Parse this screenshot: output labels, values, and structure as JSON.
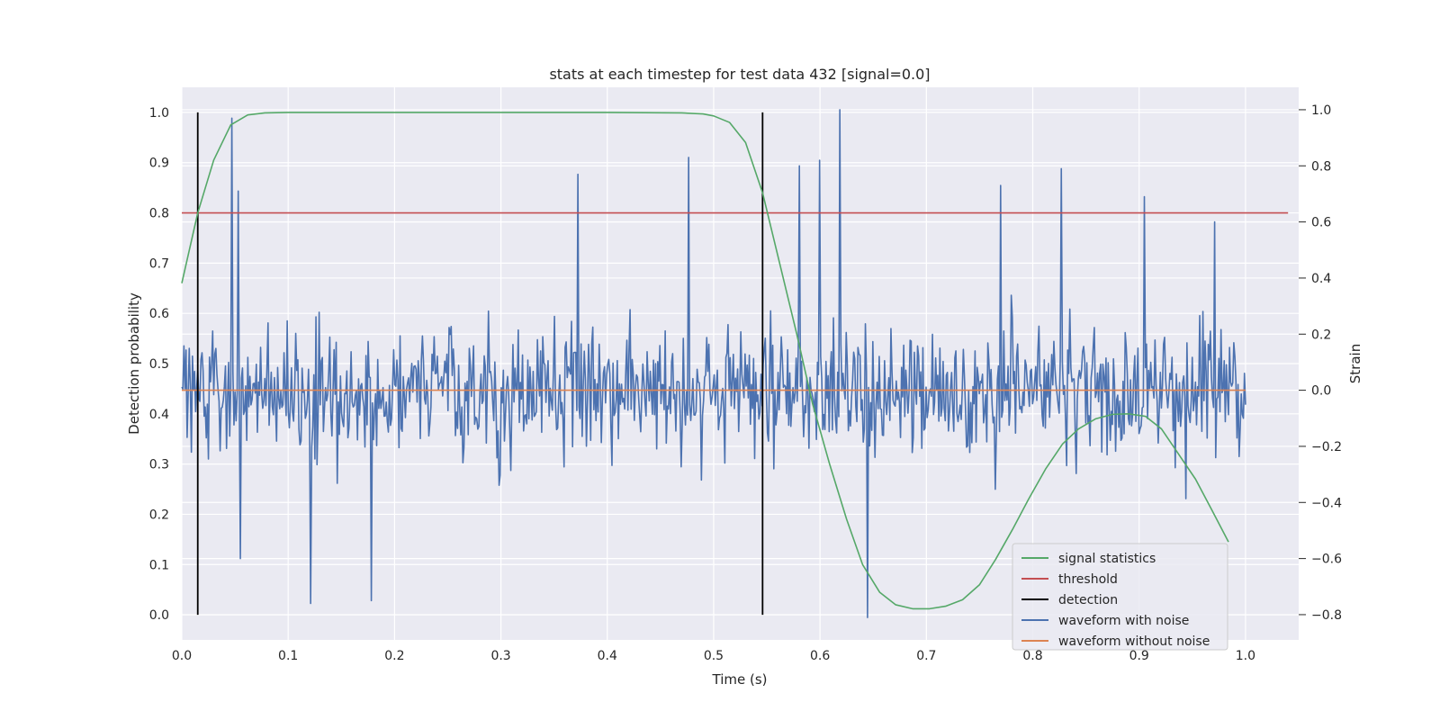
{
  "chart_data": {
    "type": "line",
    "title": "stats at each timestep for test data 432 [signal=0.0]",
    "xlabel": "Time (s)",
    "ylabel": "Detection probability",
    "ylabel_right": "Strain",
    "xlim": [
      0.0,
      1.05
    ],
    "ylim": [
      -0.05,
      1.05
    ],
    "ylim_right": [
      -0.89,
      1.08
    ],
    "x_ticks": [
      0.0,
      0.1,
      0.2,
      0.3,
      0.4,
      0.5,
      0.6,
      0.7,
      0.8,
      0.9,
      1.0
    ],
    "x_tick_labels": [
      "0.0",
      "0.1",
      "0.2",
      "0.3",
      "0.4",
      "0.5",
      "0.6",
      "0.7",
      "0.8",
      "0.9",
      "1.0"
    ],
    "y_ticks": [
      0.0,
      0.1,
      0.2,
      0.3,
      0.4,
      0.5,
      0.6,
      0.7,
      0.8,
      0.9,
      1.0
    ],
    "y_tick_labels": [
      "0.0",
      "0.1",
      "0.2",
      "0.3",
      "0.4",
      "0.5",
      "0.6",
      "0.7",
      "0.8",
      "0.9",
      "1.0"
    ],
    "y_right_ticks": [
      -0.8,
      -0.6,
      -0.4,
      -0.2,
      0.0,
      0.2,
      0.4,
      0.6,
      0.8,
      1.0
    ],
    "y_right_tick_labels": [
      "−0.8",
      "−0.6",
      "−0.4",
      "−0.2",
      "0.0",
      "0.2",
      "0.4",
      "0.6",
      "0.8",
      "1.0"
    ],
    "grid": true,
    "legend_position": "bottom-right",
    "series": [
      {
        "name": "signal statistics",
        "color": "#55a868",
        "axis": "left",
        "x": [
          0.0,
          0.015,
          0.03,
          0.046,
          0.062,
          0.078,
          0.1,
          0.2,
          0.3,
          0.4,
          0.47,
          0.49,
          0.5,
          0.515,
          0.53,
          0.546,
          0.562,
          0.578,
          0.593,
          0.609,
          0.625,
          0.64,
          0.656,
          0.671,
          0.687,
          0.703,
          0.718,
          0.734,
          0.75,
          0.765,
          0.781,
          0.796,
          0.812,
          0.828,
          0.843,
          0.859,
          0.875,
          0.89,
          0.906,
          0.921,
          0.937,
          0.953,
          0.968,
          0.984
        ],
        "y": [
          0.66,
          0.8,
          0.905,
          0.975,
          0.995,
          0.999,
          1.0,
          1.0,
          1.0,
          1.0,
          0.999,
          0.997,
          0.993,
          0.98,
          0.94,
          0.84,
          0.7,
          0.56,
          0.42,
          0.3,
          0.19,
          0.1,
          0.045,
          0.02,
          0.012,
          0.012,
          0.017,
          0.03,
          0.06,
          0.11,
          0.17,
          0.23,
          0.29,
          0.34,
          0.37,
          0.39,
          0.399,
          0.4,
          0.395,
          0.37,
          0.32,
          0.27,
          0.21,
          0.145
        ]
      },
      {
        "name": "threshold",
        "color": "#c44e52",
        "axis": "left",
        "x": [
          0.0,
          1.04
        ],
        "y": [
          0.8,
          0.8
        ]
      },
      {
        "name": "detection",
        "color": "#000000",
        "axis": "left",
        "type": "vlines",
        "x": [
          0.015,
          0.546
        ],
        "y": [
          0.0,
          1.0
        ]
      },
      {
        "name": "waveform with noise",
        "color": "#4c72b0",
        "axis": "right",
        "x_range": [
          0.0,
          1.0
        ],
        "n_points": 1000,
        "peaks": [
          {
            "x": 0.047,
            "y": 0.97
          },
          {
            "x": 0.053,
            "y": 0.71
          },
          {
            "x": 0.372,
            "y": 0.77
          },
          {
            "x": 0.476,
            "y": 0.83
          },
          {
            "x": 0.581,
            "y": 0.8
          },
          {
            "x": 0.6,
            "y": 0.82
          },
          {
            "x": 0.619,
            "y": 1.0
          },
          {
            "x": 0.645,
            "y": -0.81
          },
          {
            "x": 0.121,
            "y": -0.76
          },
          {
            "x": 0.178,
            "y": -0.75
          },
          {
            "x": 0.055,
            "y": -0.6
          },
          {
            "x": 0.77,
            "y": 0.73
          },
          {
            "x": 0.827,
            "y": 0.79
          },
          {
            "x": 0.905,
            "y": 0.69
          },
          {
            "x": 0.971,
            "y": 0.6
          }
        ]
      },
      {
        "name": "waveform without noise",
        "color": "#dd8452",
        "axis": "right",
        "x": [
          0.0,
          1.0
        ],
        "y": [
          0.0,
          0.0
        ]
      }
    ]
  }
}
